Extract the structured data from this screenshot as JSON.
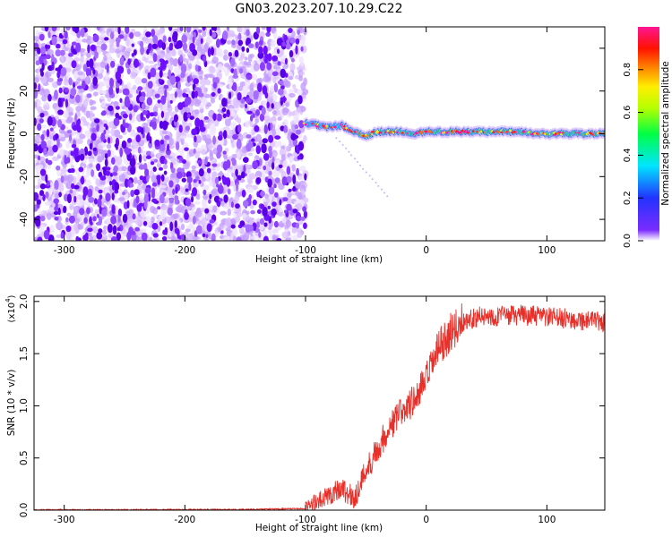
{
  "title": "GN03.2023.207.10.29.C22",
  "chart_data": [
    {
      "type": "heatmap",
      "xlabel": "Height of straight line (km)",
      "ylabel": "Frequency (Hz)",
      "xlim": [
        -325,
        148
      ],
      "ylim": [
        -50,
        50
      ],
      "xticks": [
        -300,
        -200,
        -100,
        0,
        100
      ],
      "yticks": [
        -40,
        -20,
        0,
        20,
        40
      ],
      "colorbar": {
        "label": "Normalized spectral amplitude",
        "range": [
          0,
          1
        ],
        "ticks": [
          "0.0",
          "0.2",
          "0.4",
          "0.6",
          "0.8"
        ],
        "colors": [
          "#ffffff",
          "#5500ff",
          "#0044ff",
          "#00ffff",
          "#00ff00",
          "#ffff00",
          "#ff0000",
          "#ff00aa"
        ]
      },
      "noise_region_x": [
        -325,
        -100
      ],
      "signal_track": {
        "x": [
          -100,
          -90,
          -80,
          -70,
          -60,
          -50,
          -40,
          -30,
          -20,
          -10,
          0,
          10,
          20,
          30,
          40,
          50,
          60,
          70,
          80,
          90,
          100,
          110,
          120,
          130,
          140,
          148
        ],
        "freq": [
          5,
          4,
          3,
          4,
          1,
          -1,
          1,
          1,
          1,
          0,
          1,
          1,
          1,
          1,
          1,
          1,
          1,
          1,
          1,
          0,
          0,
          0,
          0,
          0,
          0,
          0
        ]
      }
    },
    {
      "type": "line",
      "xlabel": "Height of straight line (km)",
      "ylabel": "SNR (10 * v/v)",
      "y_multiplier_label": "(x10",
      "y_multiplier_exp": "4",
      "xlim": [
        -325,
        148
      ],
      "ylim": [
        0,
        20500
      ],
      "xticks": [
        -300,
        -200,
        -100,
        0,
        100
      ],
      "yticks": [
        "0.0",
        "0.5",
        "1.0",
        "1.5",
        "2.0"
      ],
      "color": "#e8302a",
      "series": [
        {
          "x": [
            -325,
            -250,
            -150,
            -100,
            -90,
            -80,
            -70,
            -60,
            -50,
            -40,
            -30,
            -20,
            -10,
            0,
            10,
            20,
            30,
            40,
            60,
            80,
            100,
            120,
            148
          ],
          "y": [
            20,
            40,
            60,
            150,
            700,
            1500,
            2200,
            1000,
            3800,
            6000,
            8000,
            9500,
            10500,
            12500,
            15500,
            17000,
            18000,
            18500,
            18600,
            18700,
            18500,
            18300,
            18000
          ]
        }
      ]
    }
  ]
}
